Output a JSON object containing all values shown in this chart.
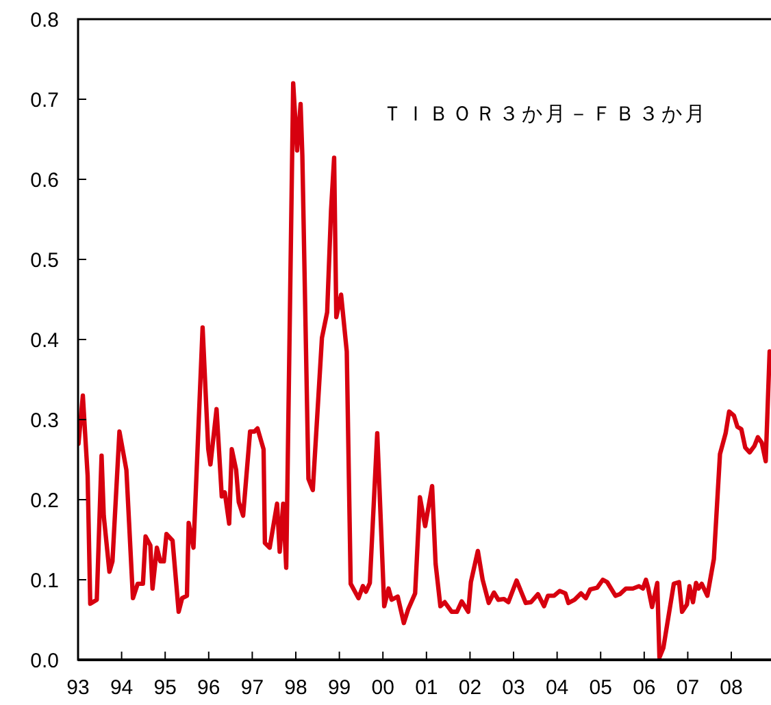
{
  "chart_data": {
    "type": "line",
    "annotations": [
      "ＴＩＢＯＲ３か月－ＦＢ３か月"
    ],
    "xlim": [
      1993,
      2008.88
    ],
    "xticks": [
      {
        "value": 1993,
        "label": "93"
      },
      {
        "value": 1994,
        "label": "94"
      },
      {
        "value": 1995,
        "label": "95"
      },
      {
        "value": 1996,
        "label": "96"
      },
      {
        "value": 1997,
        "label": "97"
      },
      {
        "value": 1998,
        "label": "98"
      },
      {
        "value": 1999,
        "label": "99"
      },
      {
        "value": 2000,
        "label": "00"
      },
      {
        "value": 2001,
        "label": "01"
      },
      {
        "value": 2002,
        "label": "02"
      },
      {
        "value": 2003,
        "label": "03"
      },
      {
        "value": 2004,
        "label": "04"
      },
      {
        "value": 2005,
        "label": "05"
      },
      {
        "value": 2006,
        "label": "06"
      },
      {
        "value": 2007,
        "label": "07"
      },
      {
        "value": 2008,
        "label": "08"
      }
    ],
    "ylim": [
      0,
      0.8
    ],
    "yticks": [
      {
        "value": 0,
        "label": "0.0"
      },
      0.1,
      0.2,
      0.3,
      0.4,
      0.5,
      0.6,
      0.7,
      0.8
    ],
    "grid": false,
    "marker": "none",
    "line_style": "solid",
    "series": [
      {
        "color": "#d7000f",
        "x": [
          1993.01,
          1993.11,
          1993.22,
          1993.28,
          1993.43,
          1993.54,
          1993.59,
          1993.72,
          1993.79,
          1993.95,
          1994.11,
          1994.26,
          1994.37,
          1994.49,
          1994.55,
          1994.66,
          1994.71,
          1994.81,
          1994.89,
          1994.97,
          1995.03,
          1995.17,
          1995.31,
          1995.39,
          1995.5,
          1995.54,
          1995.65,
          1995.86,
          1995.99,
          1996.04,
          1996.18,
          1996.3,
          1996.37,
          1996.47,
          1996.53,
          1996.63,
          1996.69,
          1996.79,
          1996.95,
          1997.05,
          1997.12,
          1997.26,
          1997.29,
          1997.4,
          1997.57,
          1997.63,
          1997.71,
          1997.78,
          1997.94,
          1998.03,
          1998.11,
          1998.15,
          1998.29,
          1998.39,
          1998.6,
          1998.72,
          1998.81,
          1998.88,
          1998.93,
          1999.04,
          1999.17,
          1999.26,
          1999.44,
          1999.54,
          1999.61,
          1999.7,
          1999.87,
          2000.03,
          2000.13,
          2000.2,
          2000.34,
          2000.48,
          2000.58,
          2000.74,
          2000.85,
          2000.97,
          2001.13,
          2001.21,
          2001.32,
          2001.42,
          2001.58,
          2001.7,
          2001.81,
          2001.96,
          2002.02,
          2002.18,
          2002.29,
          2002.43,
          2002.55,
          2002.65,
          2002.78,
          2002.88,
          2003.07,
          2003.28,
          2003.4,
          2003.56,
          2003.7,
          2003.79,
          2003.93,
          2004.06,
          2004.19,
          2004.26,
          2004.4,
          2004.55,
          2004.66,
          2004.76,
          2004.92,
          2005.05,
          2005.15,
          2005.34,
          2005.44,
          2005.58,
          2005.74,
          2005.88,
          2005.97,
          2006.04,
          2006.09,
          2006.18,
          2006.3,
          2006.35,
          2006.44,
          2006.68,
          2006.8,
          2006.87,
          2006.98,
          2007.04,
          2007.12,
          2007.19,
          2007.25,
          2007.32,
          2007.45,
          2007.6,
          2007.74,
          2007.87,
          2007.95,
          2008.06,
          2008.14,
          2008.23,
          2008.32,
          2008.42,
          2008.53,
          2008.61,
          2008.7,
          2008.79,
          2008.88
        ],
        "values": [
          0.27,
          0.33,
          0.23,
          0.07,
          0.075,
          0.255,
          0.18,
          0.11,
          0.123,
          0.285,
          0.237,
          0.077,
          0.095,
          0.095,
          0.154,
          0.143,
          0.089,
          0.14,
          0.123,
          0.123,
          0.157,
          0.149,
          0.06,
          0.077,
          0.08,
          0.171,
          0.14,
          0.415,
          0.263,
          0.244,
          0.313,
          0.204,
          0.209,
          0.17,
          0.263,
          0.237,
          0.197,
          0.18,
          0.285,
          0.285,
          0.289,
          0.263,
          0.146,
          0.14,
          0.195,
          0.135,
          0.195,
          0.115,
          0.72,
          0.636,
          0.694,
          0.63,
          0.226,
          0.212,
          0.402,
          0.434,
          0.562,
          0.627,
          0.428,
          0.456,
          0.385,
          0.095,
          0.077,
          0.092,
          0.085,
          0.096,
          0.283,
          0.067,
          0.089,
          0.075,
          0.079,
          0.046,
          0.063,
          0.083,
          0.203,
          0.167,
          0.217,
          0.12,
          0.067,
          0.072,
          0.06,
          0.06,
          0.073,
          0.06,
          0.097,
          0.136,
          0.1,
          0.071,
          0.084,
          0.075,
          0.076,
          0.072,
          0.099,
          0.071,
          0.072,
          0.082,
          0.067,
          0.08,
          0.08,
          0.086,
          0.083,
          0.071,
          0.075,
          0.083,
          0.077,
          0.088,
          0.09,
          0.1,
          0.097,
          0.08,
          0.082,
          0.089,
          0.089,
          0.092,
          0.089,
          0.1,
          0.09,
          0.066,
          0.096,
          0.003,
          0.015,
          0.095,
          0.097,
          0.06,
          0.069,
          0.092,
          0.072,
          0.096,
          0.089,
          0.095,
          0.08,
          0.126,
          0.257,
          0.283,
          0.31,
          0.305,
          0.291,
          0.288,
          0.265,
          0.259,
          0.267,
          0.278,
          0.271,
          0.248,
          0.385
        ]
      }
    ]
  }
}
